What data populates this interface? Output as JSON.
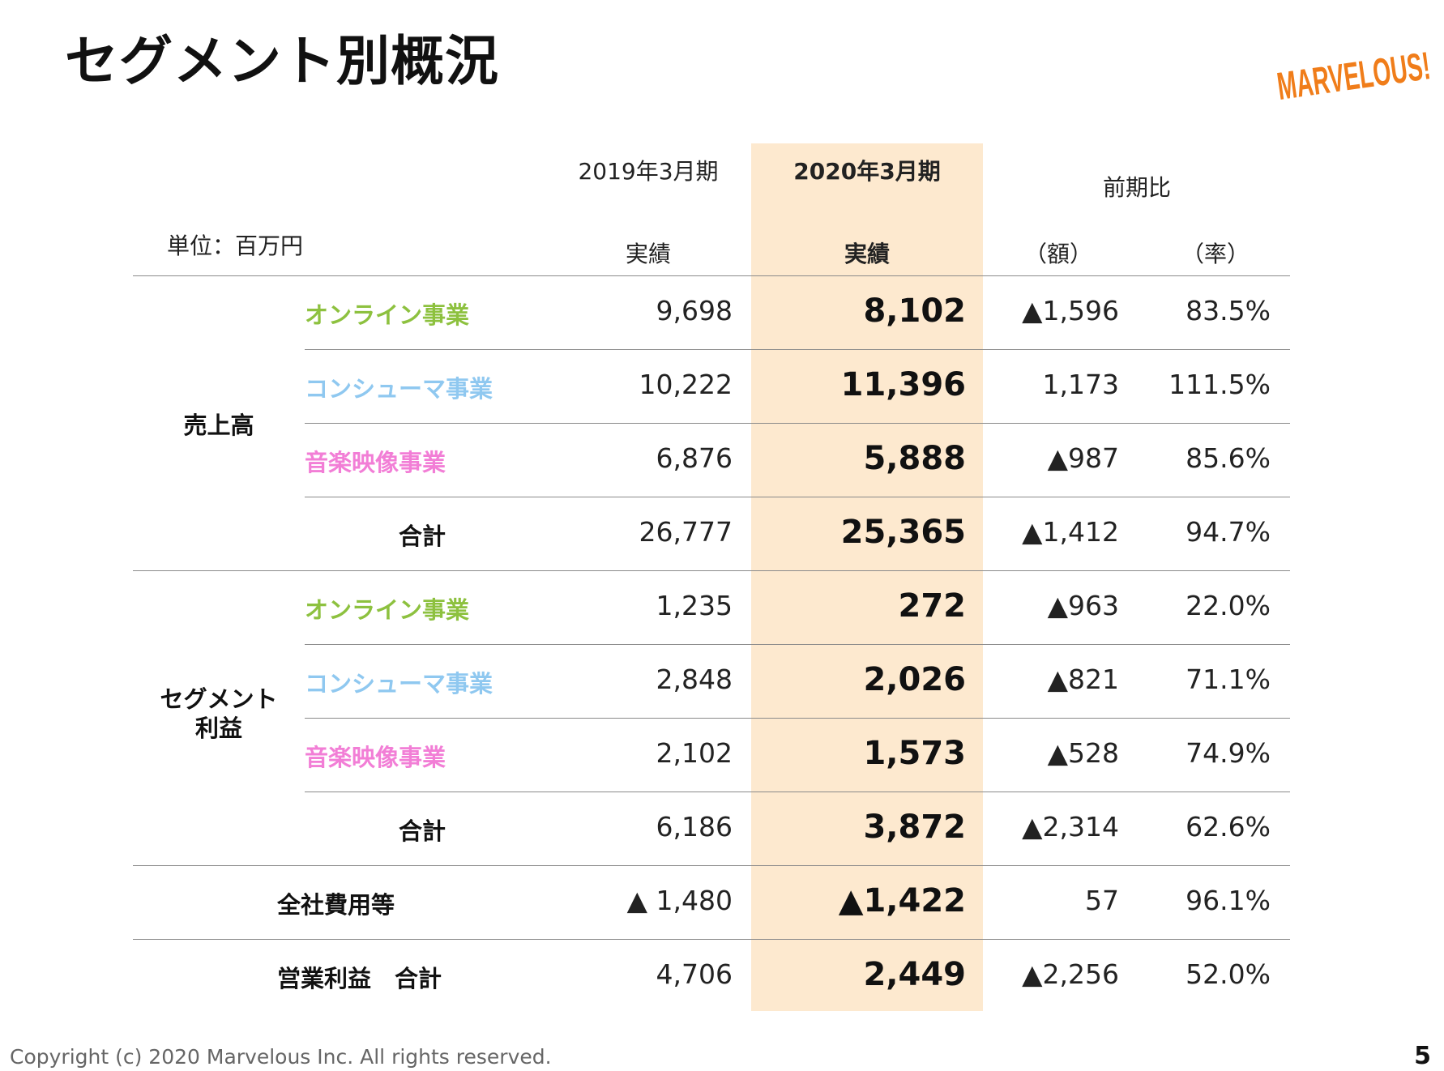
{
  "title": "セグメント別概況",
  "logo_text": "MARVELOUS!",
  "colors": {
    "online": "#8dc13f",
    "consumer": "#8fc8f0",
    "music": "#f27ed6",
    "highlight": "#fde9cf",
    "logo": "#f07d1a"
  },
  "header": {
    "unit": "単位：百万円",
    "prev_period": "2019年3月期",
    "curr_period": "2020年3月期",
    "prev_actual": "実績",
    "curr_actual": "実績",
    "compare": "前期比",
    "amount": "（額）",
    "rate": "（率）"
  },
  "groups": {
    "sales": "売上高",
    "segment_profit_1": "セグメント",
    "segment_profit_2": "利益"
  },
  "rows": [
    {
      "label": "オンライン事業",
      "prev": "9,698",
      "curr": "8,102",
      "diff": "▲1,596",
      "rate": "83.5%"
    },
    {
      "label": "コンシューマ事業",
      "prev": "10,222",
      "curr": "11,396",
      "diff": "1,173",
      "rate": "111.5%"
    },
    {
      "label": "音楽映像事業",
      "prev": "6,876",
      "curr": "5,888",
      "diff": "▲987",
      "rate": "85.6%"
    },
    {
      "label": "合計",
      "prev": "26,777",
      "curr": "25,365",
      "diff": "▲1,412",
      "rate": "94.7%"
    },
    {
      "label": "オンライン事業",
      "prev": "1,235",
      "curr": "272",
      "diff": "▲963",
      "rate": "22.0%"
    },
    {
      "label": "コンシューマ事業",
      "prev": "2,848",
      "curr": "2,026",
      "diff": "▲821",
      "rate": "71.1%"
    },
    {
      "label": "音楽映像事業",
      "prev": "2,102",
      "curr": "1,573",
      "diff": "▲528",
      "rate": "74.9%"
    },
    {
      "label": "合計",
      "prev": "6,186",
      "curr": "3,872",
      "diff": "▲2,314",
      "rate": "62.6%"
    },
    {
      "label": "全社費用等",
      "prev": "▲ 1,480",
      "curr": "▲1,422",
      "diff": "57",
      "rate": "96.1%"
    },
    {
      "label": "営業利益　合計",
      "prev": "4,706",
      "curr": "2,449",
      "diff": "▲2,256",
      "rate": "52.0%"
    }
  ],
  "footer": "Copyright (c) 2020 Marvelous Inc. All rights reserved.",
  "page_number": "5"
}
